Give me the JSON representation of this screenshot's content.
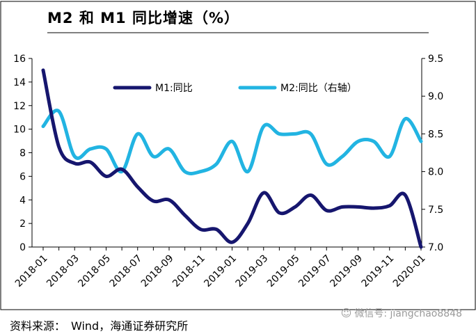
{
  "chart_data": {
    "type": "line",
    "title": "M2 和 M1 同比增速（%）",
    "x": [
      "2018-01",
      "2018-02",
      "2018-03",
      "2018-04",
      "2018-05",
      "2018-06",
      "2018-07",
      "2018-08",
      "2018-09",
      "2018-10",
      "2018-11",
      "2018-12",
      "2019-01",
      "2019-02",
      "2019-03",
      "2019-04",
      "2019-05",
      "2019-06",
      "2019-07",
      "2019-08",
      "2019-09",
      "2019-10",
      "2019-11",
      "2019-12",
      "2020-01"
    ],
    "x_tick_labels": [
      "2018-01",
      "2018-03",
      "2018-05",
      "2018-07",
      "2018-09",
      "2018-11",
      "2019-01",
      "2019-03",
      "2019-05",
      "2019-07",
      "2019-09",
      "2019-11",
      "2020-01"
    ],
    "series": [
      {
        "name": "M1:同比",
        "axis": "left",
        "color": "#16166e",
        "values": [
          15.0,
          8.5,
          7.1,
          7.2,
          6.0,
          6.6,
          5.1,
          3.9,
          4.0,
          2.7,
          1.5,
          1.5,
          0.4,
          2.0,
          4.6,
          2.9,
          3.4,
          4.4,
          3.1,
          3.4,
          3.4,
          3.3,
          3.5,
          4.4,
          0.0
        ]
      },
      {
        "name": "M2:同比（右轴）",
        "axis": "right",
        "color": "#22b4e2",
        "values": [
          8.6,
          8.8,
          8.2,
          8.3,
          8.3,
          8.0,
          8.5,
          8.2,
          8.3,
          8.0,
          8.0,
          8.1,
          8.4,
          8.0,
          8.6,
          8.5,
          8.5,
          8.5,
          8.1,
          8.2,
          8.4,
          8.4,
          8.2,
          8.7,
          8.4
        ]
      }
    ],
    "y_left": {
      "min": 0,
      "max": 16,
      "ticks": [
        "0",
        "2",
        "4",
        "6",
        "8",
        "10",
        "12",
        "14",
        "16"
      ]
    },
    "y_right": {
      "min": 7.0,
      "max": 9.5,
      "ticks": [
        "7.0",
        "7.5",
        "8.0",
        "8.5",
        "9.0",
        "9.5"
      ]
    },
    "legend_placement": "top, inside plot",
    "grid": false
  },
  "footer": {
    "source": "资料来源：　Wind，海通证券研究所"
  },
  "watermark": {
    "icon": "wechat-icon",
    "text": "微信号: jiangchao8848"
  }
}
